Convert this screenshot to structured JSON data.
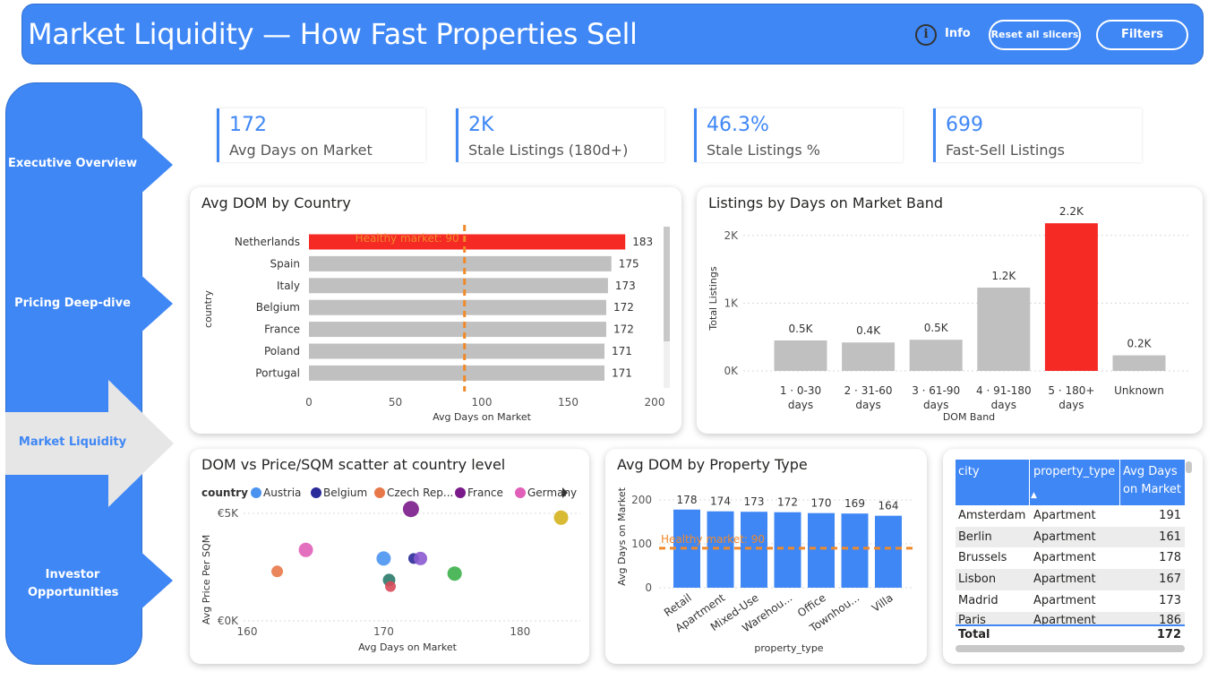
{
  "header": {
    "title": "Market Liquidity — How Fast Properties Sell",
    "info_label": "Info",
    "reset_label": "Reset all slicers",
    "filters_label": "Filters"
  },
  "nav": {
    "items": [
      {
        "label": "Executive Overview",
        "active": false
      },
      {
        "label": "Pricing Deep-dive",
        "active": false
      },
      {
        "label": "Market Liquidity",
        "active": true
      },
      {
        "label": "Investor Opportunities",
        "active": false
      }
    ]
  },
  "kpis": [
    {
      "value": "172",
      "label": "Avg Days on Market"
    },
    {
      "value": "2K",
      "label": "Stale Listings (180d+)"
    },
    {
      "value": "46.3%",
      "label": "Stale Listings %"
    },
    {
      "value": "699",
      "label": "Fast-Sell Listings"
    }
  ],
  "colors": {
    "accent": "#3f87f5",
    "highlight": "#f52a24",
    "bar_gray": "#c0c0c0",
    "ref_line": "#f0892a"
  },
  "chart_data": [
    {
      "type": "bar",
      "orientation": "horizontal",
      "title": "Avg DOM by Country",
      "xlabel": "Avg Days on Market",
      "ylabel": "country",
      "categories": [
        "Netherlands",
        "Spain",
        "Italy",
        "Belgium",
        "France",
        "Poland",
        "Portugal"
      ],
      "values": [
        183,
        175,
        173,
        172,
        172,
        171,
        171
      ],
      "highlight": [
        "Netherlands"
      ],
      "xlim": [
        0,
        200
      ],
      "xticks": [
        "0",
        "50",
        "100",
        "150",
        "200"
      ],
      "reference_line": {
        "value": 90,
        "label": "Healthy market: 90"
      }
    },
    {
      "type": "bar",
      "title": "Listings by Days on Market Band",
      "xlabel": "DOM Band",
      "ylabel": "Total Listings",
      "categories": [
        [
          "1 · 0-30",
          "days"
        ],
        [
          "2 · 31-60",
          "days"
        ],
        [
          "3 · 61-90",
          "days"
        ],
        [
          "4 · 91-180",
          "days"
        ],
        [
          "5 · 180+",
          "days"
        ],
        [
          "Unknown"
        ]
      ],
      "values": [
        450,
        420,
        460,
        1230,
        2180,
        230
      ],
      "data_labels": [
        "0.5K",
        "0.4K",
        "0.5K",
        "1.2K",
        "2.2K",
        "0.2K"
      ],
      "highlight_index": 4,
      "ylim": [
        0,
        2500
      ],
      "yticks": [
        "0K",
        "1K",
        "2K"
      ],
      "grid": true
    },
    {
      "type": "scatter",
      "title": "DOM vs Price/SQM scatter at country level",
      "xlabel": "Avg Days on Market",
      "ylabel": "Avg Price Per SQM",
      "legend_title": "country",
      "legend": [
        {
          "name": "Austria",
          "color": "#4a94f0"
        },
        {
          "name": "Belgium",
          "color": "#2a2a9a"
        },
        {
          "name": "Czech Rep...",
          "color": "#e8784a"
        },
        {
          "name": "France",
          "color": "#7a1a8a"
        },
        {
          "name": "Germany",
          "color": "#e060b8"
        }
      ],
      "xlim": [
        160,
        185
      ],
      "ylim": [
        0,
        5500
      ],
      "xticks": [
        "160",
        "170",
        "180"
      ],
      "yticks": [
        "€0K",
        "€5K"
      ],
      "points": [
        {
          "x": 183,
          "y": 4800,
          "color": "#d4b21e",
          "r": 8
        },
        {
          "x": 172,
          "y": 5200,
          "color": "#7a1a8a",
          "r": 9
        },
        {
          "x": 164.3,
          "y": 3300,
          "color": "#e060b8",
          "r": 8
        },
        {
          "x": 162.2,
          "y": 2300,
          "color": "#e8784a",
          "r": 6.5
        },
        {
          "x": 170,
          "y": 2900,
          "color": "#4a94f0",
          "r": 8
        },
        {
          "x": 172.2,
          "y": 2900,
          "color": "#2a2a9a",
          "r": 6
        },
        {
          "x": 172.7,
          "y": 2900,
          "color": "#8a5ad0",
          "r": 7.5
        },
        {
          "x": 175.2,
          "y": 2200,
          "color": "#3cb04a",
          "r": 8
        },
        {
          "x": 170.4,
          "y": 1900,
          "color": "#2a7a6a",
          "r": 7
        },
        {
          "x": 170.5,
          "y": 1600,
          "color": "#d84a5a",
          "r": 6
        }
      ]
    },
    {
      "type": "bar",
      "title": "Avg DOM by Property Type",
      "xlabel": "property_type",
      "ylabel": "Avg Days on Market",
      "categories": [
        "Retail",
        "Apartment",
        "Mixed-Use",
        "Warehou...",
        "Office",
        "Townhou...",
        "Villa"
      ],
      "values": [
        178,
        174,
        173,
        172,
        170,
        169,
        164
      ],
      "ylim": [
        0,
        230
      ],
      "yticks": [
        "0",
        "100",
        "200"
      ],
      "reference_line": {
        "value": 90,
        "label": "Healthy market: 90"
      }
    }
  ],
  "table": {
    "columns": [
      "city",
      "property_type",
      "Avg Days on Market"
    ],
    "sort_indicator": "▲",
    "rows": [
      [
        "Amsterdam",
        "Apartment",
        "191"
      ],
      [
        "Berlin",
        "Apartment",
        "161"
      ],
      [
        "Brussels",
        "Apartment",
        "178"
      ],
      [
        "Lisbon",
        "Apartment",
        "167"
      ],
      [
        "Madrid",
        "Apartment",
        "173"
      ],
      [
        "Paris",
        "Apartment",
        "186"
      ]
    ],
    "total_label": "Total",
    "total_value": "172"
  }
}
